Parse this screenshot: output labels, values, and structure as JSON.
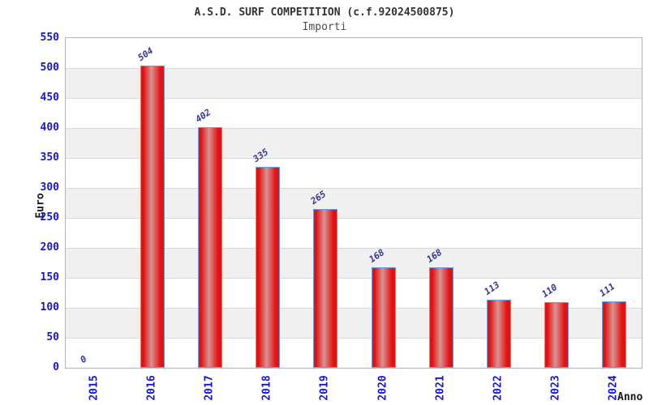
{
  "chart_data": {
    "type": "bar",
    "title": "A.S.D. SURF COMPETITION (c.f.92024500875)",
    "subtitle": "Importi",
    "xlabel": "Anno",
    "ylabel": "Euro",
    "categories": [
      "2015",
      "2016",
      "2017",
      "2018",
      "2019",
      "2020",
      "2021",
      "2022",
      "2023",
      "2024"
    ],
    "values": [
      0,
      504,
      402,
      335,
      265,
      168,
      168,
      113,
      110,
      111
    ],
    "ylim": [
      0,
      550
    ],
    "ytick_step": 50,
    "grid": "horizontal-bands",
    "legend": "none",
    "colors": {
      "bar_fill_edge": "#e41111",
      "bar_fill_center": "#d69494",
      "bar_border": "#64a0e8",
      "tick_label": "#1515cd",
      "data_label": "#3333a0",
      "band": "#f0f0f0",
      "gridline": "#d9d9d9",
      "plot_border": "#b3b3b3",
      "title": "#333333",
      "subtitle": "#4d4d4d",
      "axis_title": "#1a1a1a"
    }
  }
}
